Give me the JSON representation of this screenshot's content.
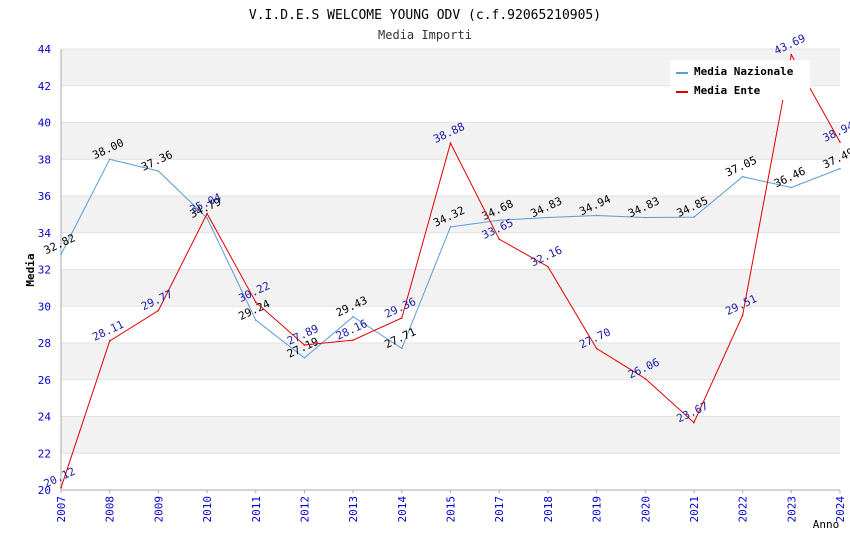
{
  "chart_data": {
    "type": "line",
    "title": "V.I.D.E.S WELCOME YOUNG ODV (c.f.92065210905)",
    "subtitle": "Media Importi",
    "xlabel": "Anno",
    "ylabel": "Media",
    "ylim": [
      20,
      44
    ],
    "yticks": [
      "20",
      "22",
      "24",
      "26",
      "28",
      "30",
      "32",
      "34",
      "36",
      "38",
      "40",
      "42",
      "44"
    ],
    "categories": [
      "2007",
      "2008",
      "2009",
      "2010",
      "2011",
      "2012",
      "2013",
      "2014",
      "2015",
      "2017",
      "2018",
      "2019",
      "2020",
      "2021",
      "2022",
      "2023",
      "2024"
    ],
    "series": [
      {
        "name": "Media Nazionale",
        "color": "#5b9bd5",
        "values": [
          32.82,
          38.0,
          37.36,
          34.79,
          29.24,
          27.19,
          29.43,
          27.71,
          34.32,
          34.68,
          34.83,
          34.94,
          34.83,
          34.85,
          37.05,
          36.46,
          37.49
        ],
        "labels": [
          "32.82",
          "38.00",
          "37.36",
          "34.79",
          "29.24",
          "27.19",
          "29.43",
          "27.71",
          "34.32",
          "34.68",
          "34.83",
          "34.94",
          "34.83",
          "34.85",
          "37.05",
          "36.46",
          "37.49"
        ]
      },
      {
        "name": "Media Ente",
        "color": "#e00000",
        "values": [
          20.12,
          28.11,
          29.77,
          35.04,
          30.22,
          27.89,
          28.16,
          29.36,
          38.88,
          33.65,
          32.16,
          27.7,
          26.06,
          23.67,
          29.51,
          43.69,
          38.94
        ],
        "labels": [
          "20.12",
          "28.11",
          "29.77",
          "35.04",
          "30.22",
          "27.89",
          "28.16",
          "29.36",
          "38.88",
          "33.65",
          "32.16",
          "27.70",
          "26.06",
          "23.67",
          "29.51",
          "43.69",
          "38.94"
        ]
      }
    ],
    "legend": "top-right",
    "grid": true
  }
}
